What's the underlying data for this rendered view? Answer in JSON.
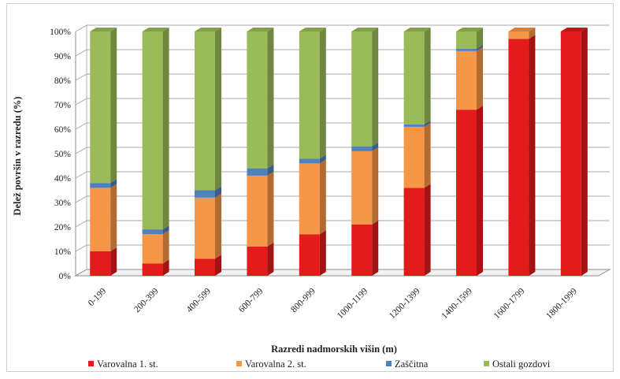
{
  "chart_data": {
    "type": "bar",
    "stacked": true,
    "percent_stacked": true,
    "style": "3d",
    "title": "",
    "xlabel": "Razredi nadmorskih višin (m)",
    "ylabel": "Delež površin v razredu (%)",
    "ylim": [
      0,
      100
    ],
    "y_ticks": [
      "0%",
      "10%",
      "20%",
      "30%",
      "40%",
      "50%",
      "60%",
      "70%",
      "80%",
      "90%",
      "100%"
    ],
    "grid": true,
    "legend_position": "bottom",
    "categories": [
      "0-199",
      "200-399",
      "400-599",
      "600-799",
      "800-999",
      "1000-1199",
      "1200-1399",
      "1400-1599",
      "1600-1799",
      "1800-1999"
    ],
    "series": [
      {
        "name": "Varovalna 1. st.",
        "color": "#e31b1b",
        "values": [
          10,
          5,
          7,
          12,
          17,
          21,
          36,
          68,
          97,
          100
        ]
      },
      {
        "name": "Varovalna 2. st.",
        "color": "#f79646",
        "values": [
          26,
          12,
          25,
          29,
          29,
          30,
          25,
          24,
          3,
          0
        ]
      },
      {
        "name": "Zaščitna",
        "color": "#4f81bd",
        "values": [
          2,
          2,
          3,
          3,
          2,
          2,
          1,
          1,
          0,
          0
        ]
      },
      {
        "name": "Ostali gozdovi",
        "color": "#9bbb59",
        "values": [
          62,
          81,
          65,
          56,
          52,
          47,
          38,
          7,
          0,
          0
        ]
      }
    ]
  }
}
